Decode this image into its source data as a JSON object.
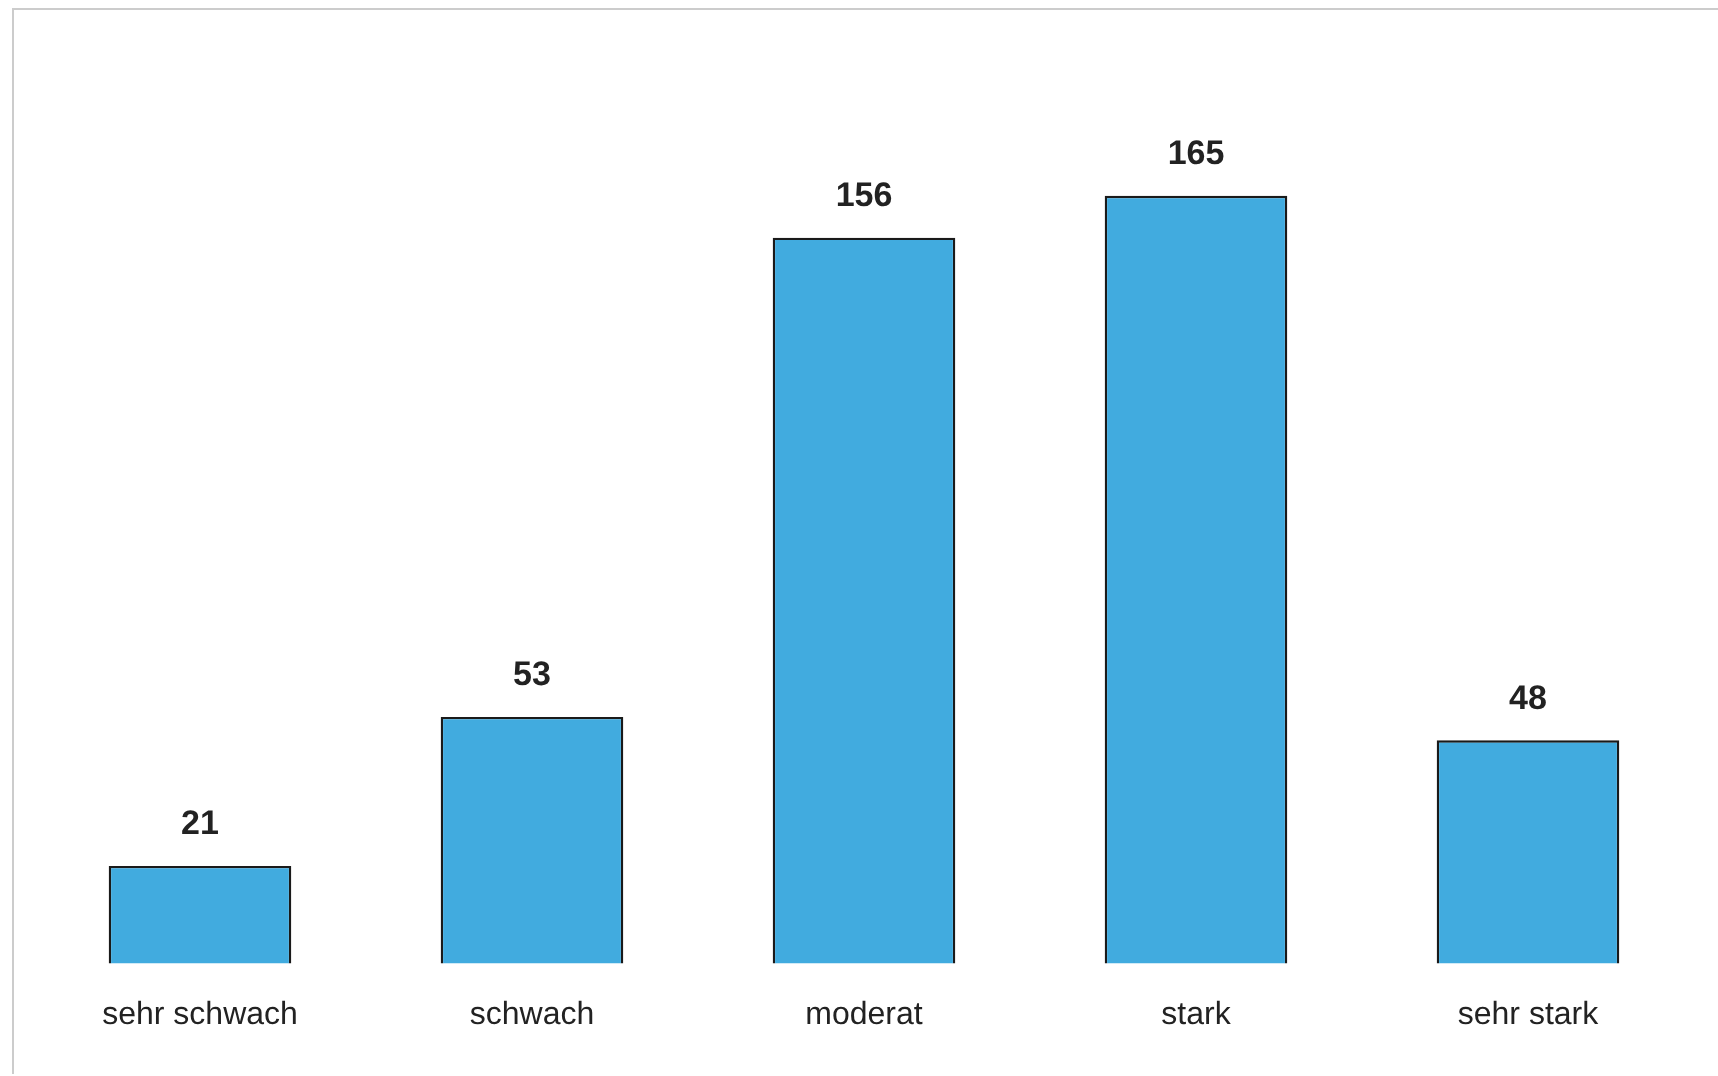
{
  "chart_data": {
    "type": "bar",
    "categories": [
      "sehr schwach",
      "schwach",
      "moderat",
      "stark",
      "sehr stark"
    ],
    "values": [
      21,
      53,
      156,
      165,
      48
    ],
    "color": "#41abdf",
    "data_labels": true
  }
}
